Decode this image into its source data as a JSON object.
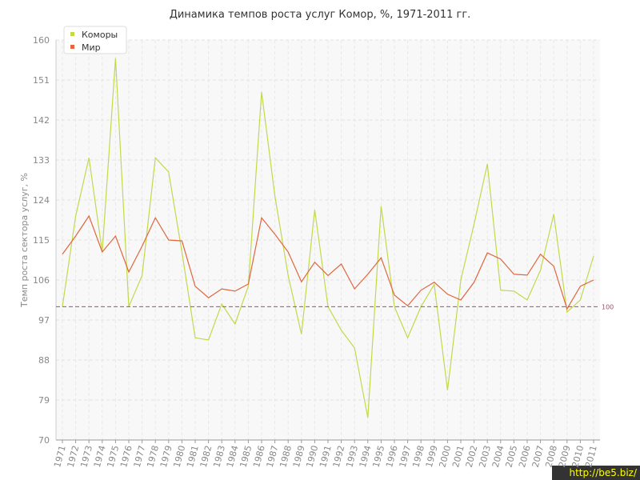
{
  "chart_data": {
    "type": "line",
    "title": "Динамика темпов роста услуг Комор, %, 1971-2011 гг.",
    "y_label": "Темп роста сектора услуг, %",
    "x": [
      1971,
      1972,
      1973,
      1974,
      1975,
      1976,
      1977,
      1978,
      1979,
      1980,
      1981,
      1982,
      1983,
      1984,
      1985,
      1986,
      1987,
      1988,
      1989,
      1990,
      1991,
      1992,
      1993,
      1994,
      1995,
      1996,
      1997,
      1998,
      1999,
      2000,
      2001,
      2002,
      2003,
      2004,
      2005,
      2006,
      2007,
      2008,
      2009,
      2010,
      2011
    ],
    "xlim": [
      1971,
      2011
    ],
    "ylim": [
      70,
      160
    ],
    "yticks": [
      70,
      79,
      88,
      97,
      106,
      115,
      124,
      133,
      142,
      151,
      160
    ],
    "grid": true,
    "legend": "top-left",
    "reference_line": 100,
    "watermark": "http://be5.biz/",
    "series": [
      {
        "name": "Коморы",
        "color": "#c2d94a",
        "values": [
          100,
          120.4,
          133.5,
          112.3,
          155.9,
          100,
          107,
          133.5,
          130.3,
          112.3,
          93,
          92.5,
          100.6,
          96.1,
          104.6,
          148.3,
          124.9,
          107,
          93.8,
          121.8,
          100,
          94.7,
          90.7,
          75,
          122.6,
          100,
          93,
          100,
          105,
          81.2,
          106,
          118.6,
          132.1,
          103.7,
          103.5,
          101.5,
          108.2,
          120.8,
          98.8,
          101.5,
          111.4
        ]
      },
      {
        "name": "Мир",
        "color": "#e0663c",
        "values": [
          111.8,
          115.9,
          120.4,
          112.3,
          115.9,
          107.8,
          113.6,
          120,
          115,
          114.8,
          104.6,
          102,
          104,
          103.5,
          105.1,
          120,
          116.3,
          112.3,
          105.6,
          110,
          107,
          109.6,
          104,
          107.3,
          111,
          102.6,
          100.2,
          103.7,
          105.5,
          102.8,
          101.5,
          105.5,
          112.1,
          110.7,
          107.3,
          107.1,
          111.8,
          109.1,
          99.5,
          104.6,
          106
        ]
      }
    ]
  }
}
